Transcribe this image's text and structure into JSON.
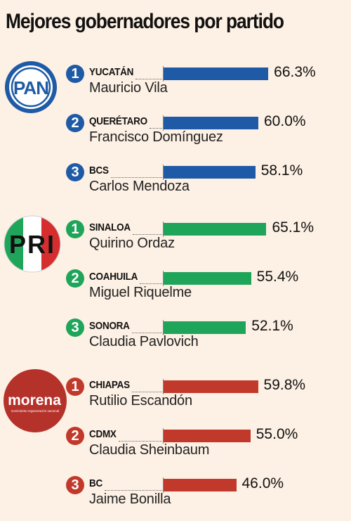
{
  "title": "Mejores gobernadores por partido",
  "logos": {
    "pan": {
      "text": "PAN"
    },
    "pri": {
      "text": "PRI"
    },
    "morena": {
      "text": "morena",
      "subtitle": "movimiento regeneración nacional"
    }
  },
  "colors": {
    "PAN": "#1f5aa6",
    "PRI": "#1fa55a",
    "MORENA": "#c0392b"
  },
  "chart_data": {
    "type": "bar",
    "title": "Mejores gobernadores por partido",
    "orientation": "horizontal",
    "unit": "%",
    "xlim": [
      0,
      100
    ],
    "groups": [
      {
        "party": "PAN",
        "entries": [
          {
            "rank": "1",
            "state": "YUCATÁN",
            "governor": "Mauricio Vila",
            "value": 66.3,
            "label": "66.3%"
          },
          {
            "rank": "2",
            "state": "QUERÉTARO",
            "governor": "Francisco Domínguez",
            "value": 60.0,
            "label": "60.0%"
          },
          {
            "rank": "3",
            "state": "BCS",
            "governor": "Carlos Mendoza",
            "value": 58.1,
            "label": "58.1%"
          }
        ]
      },
      {
        "party": "PRI",
        "entries": [
          {
            "rank": "1",
            "state": "SINALOA",
            "governor": "Quirino Ordaz",
            "value": 65.1,
            "label": "65.1%"
          },
          {
            "rank": "2",
            "state": "COAHUILA",
            "governor": "Miguel Riquelme",
            "value": 55.4,
            "label": "55.4%"
          },
          {
            "rank": "3",
            "state": "SONORA",
            "governor": "Claudia Pavlovich",
            "value": 52.1,
            "label": "52.1%"
          }
        ]
      },
      {
        "party": "MORENA",
        "entries": [
          {
            "rank": "1",
            "state": "CHIAPAS",
            "governor": "Rutilio Escandón",
            "value": 59.8,
            "label": "59.8%"
          },
          {
            "rank": "2",
            "state": "CDMX",
            "governor": "Claudia Sheinbaum",
            "value": 55.0,
            "label": "55.0%"
          },
          {
            "rank": "3",
            "state": "BC",
            "governor": "Jaime Bonilla",
            "value": 46.0,
            "label": "46.0%"
          }
        ]
      }
    ]
  }
}
